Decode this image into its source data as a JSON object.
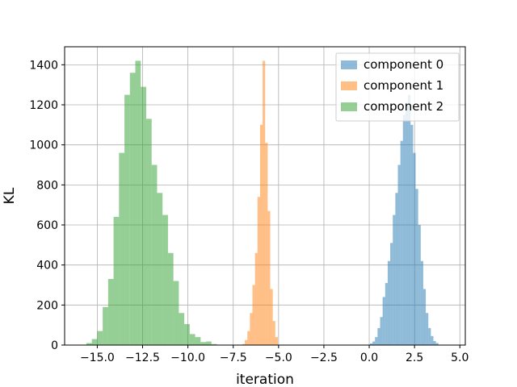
{
  "chart_data": {
    "type": "bar",
    "xlabel": "iteration",
    "ylabel": "KL",
    "xlim": [
      -16.8,
      5.3
    ],
    "ylim": [
      0,
      1490
    ],
    "xticks": [
      -15.0,
      -12.5,
      -10.0,
      -7.5,
      -5.0,
      -2.5,
      0.0,
      2.5,
      5.0
    ],
    "xtick_labels": [
      "−15.0",
      "−12.5",
      "−10.0",
      "−7.5",
      "−5.0",
      "−2.5",
      "0.0",
      "2.5",
      "5.0"
    ],
    "yticks": [
      0,
      200,
      400,
      600,
      800,
      1000,
      1200,
      1400
    ],
    "ytick_labels": [
      "0",
      "200",
      "400",
      "600",
      "800",
      "1000",
      "1200",
      "1400"
    ],
    "grid": true,
    "legend_position": "top-right",
    "series": [
      {
        "name": "component 0",
        "color": "#1f77b4",
        "alpha": 0.5,
        "bin_edges": [
          0.04,
          0.18,
          0.32,
          0.46,
          0.6,
          0.74,
          0.88,
          1.02,
          1.16,
          1.3,
          1.44,
          1.58,
          1.72,
          1.86,
          2.0,
          2.14,
          2.28,
          2.42,
          2.56,
          2.7,
          2.84,
          2.98,
          3.12,
          3.26,
          3.4,
          3.54,
          3.68,
          3.82
        ],
        "counts": [
          8,
          18,
          40,
          85,
          140,
          240,
          310,
          420,
          510,
          650,
          760,
          900,
          1020,
          1150,
          1210,
          1250,
          1100,
          960,
          780,
          600,
          420,
          280,
          160,
          85,
          45,
          20,
          10
        ]
      },
      {
        "name": "component 1",
        "color": "#ff7f0e",
        "alpha": 0.5,
        "bin_edges": [
          -7.0,
          -6.86,
          -6.72,
          -6.58,
          -6.44,
          -6.3,
          -6.16,
          -6.02,
          -5.88,
          -5.74,
          -5.6,
          -5.46,
          -5.32,
          -5.18,
          -5.04
        ],
        "counts": [
          5,
          25,
          70,
          160,
          300,
          460,
          740,
          1100,
          1420,
          1010,
          670,
          280,
          120,
          40
        ]
      },
      {
        "name": "component 2",
        "color": "#2ca02c",
        "alpha": 0.5,
        "bin_edges": [
          -15.6,
          -15.3,
          -15.0,
          -14.7,
          -14.4,
          -14.1,
          -13.8,
          -13.5,
          -13.2,
          -12.9,
          -12.6,
          -12.3,
          -12.0,
          -11.7,
          -11.4,
          -11.1,
          -10.8,
          -10.5,
          -10.2,
          -9.9,
          -9.6,
          -9.3,
          -9.0,
          -8.7,
          -8.4
        ],
        "counts": [
          10,
          30,
          70,
          190,
          330,
          640,
          960,
          1250,
          1360,
          1420,
          1290,
          1130,
          900,
          760,
          650,
          460,
          320,
          160,
          105,
          55,
          40,
          15,
          18,
          5
        ]
      }
    ]
  }
}
